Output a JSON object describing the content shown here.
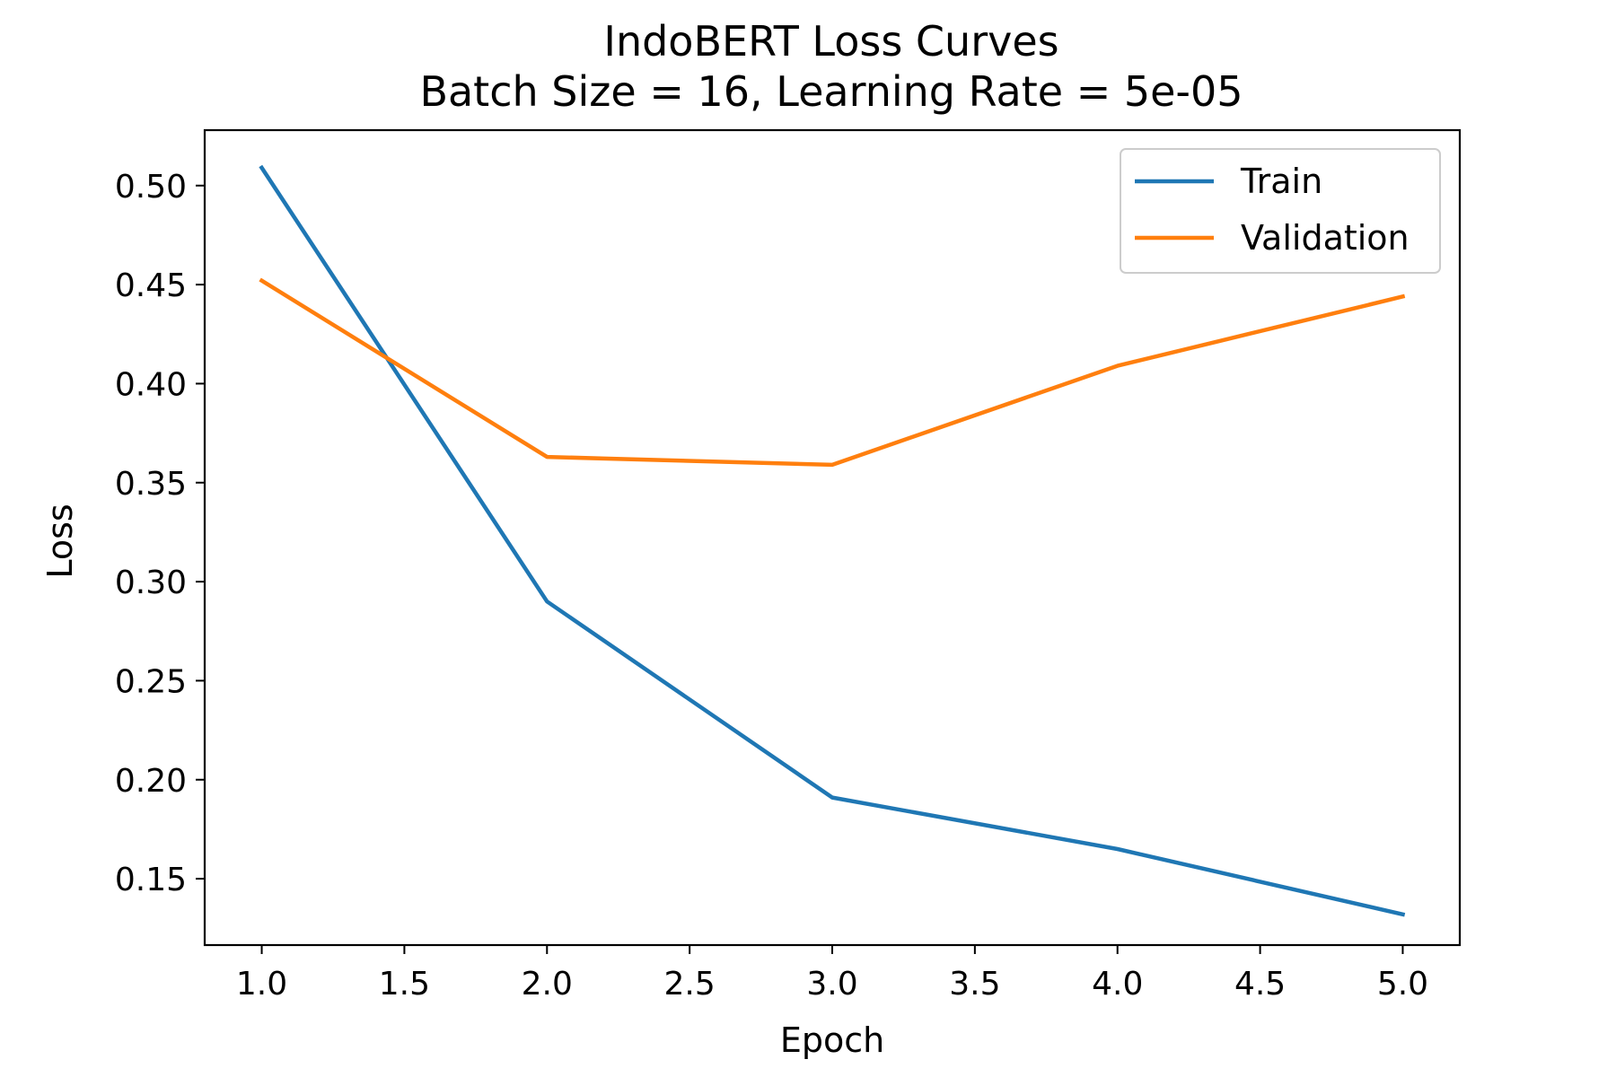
{
  "chart_data": {
    "type": "line",
    "title": "IndoBERT Loss Curves",
    "subtitle": "Batch Size = 16, Learning Rate = 5e-05",
    "xlabel": "Epoch",
    "ylabel": "Loss",
    "x": [
      1,
      2,
      3,
      4,
      5
    ],
    "xlim": [
      0.8,
      5.2
    ],
    "ylim": [
      0.1165,
      0.528
    ],
    "x_ticks": [
      "1.0",
      "1.5",
      "2.0",
      "2.5",
      "3.0",
      "3.5",
      "4.0",
      "4.5",
      "5.0"
    ],
    "y_ticks": [
      "0.15",
      "0.20",
      "0.25",
      "0.30",
      "0.35",
      "0.40",
      "0.45",
      "0.50"
    ],
    "grid": false,
    "legend_position": "top-right",
    "series": [
      {
        "name": "Train",
        "color": "#1f77b4",
        "values": [
          0.509,
          0.29,
          0.191,
          0.165,
          0.132
        ]
      },
      {
        "name": "Validation",
        "color": "#ff7f0e",
        "values": [
          0.452,
          0.363,
          0.359,
          0.409,
          0.444
        ]
      }
    ]
  }
}
